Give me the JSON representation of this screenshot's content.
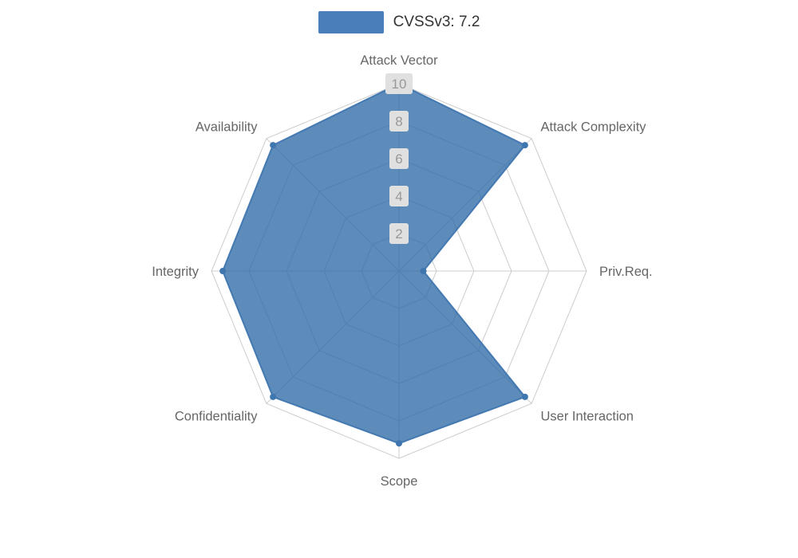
{
  "legend": {
    "label": "CVSSv3: 7.2",
    "swatch_color": "#4a7ebb"
  },
  "chart_data": {
    "type": "radar",
    "title": "CVSSv3: 7.2",
    "legend_position": "top",
    "grid": true,
    "max": 10,
    "tick_values": [
      2,
      4,
      6,
      8,
      10
    ],
    "indicators": [
      "Attack Vector",
      "Attack Complexity",
      "Priv.Req.",
      "User Interaction",
      "Scope",
      "Confidentiality",
      "Integrity",
      "Availability"
    ],
    "series": [
      {
        "name": "CVSSv3: 7.2",
        "values": [
          10,
          9.5,
          1.3,
          9.5,
          9.2,
          9.5,
          9.4,
          9.5
        ]
      }
    ],
    "colors": {
      "series_fill": "#2f6aa6",
      "series_line": "#3f76b0",
      "grid_line": "#cccccc",
      "axis_label": "#666666",
      "tick_label": "#999999",
      "tick_label_bg": "#e0e0e0"
    }
  }
}
